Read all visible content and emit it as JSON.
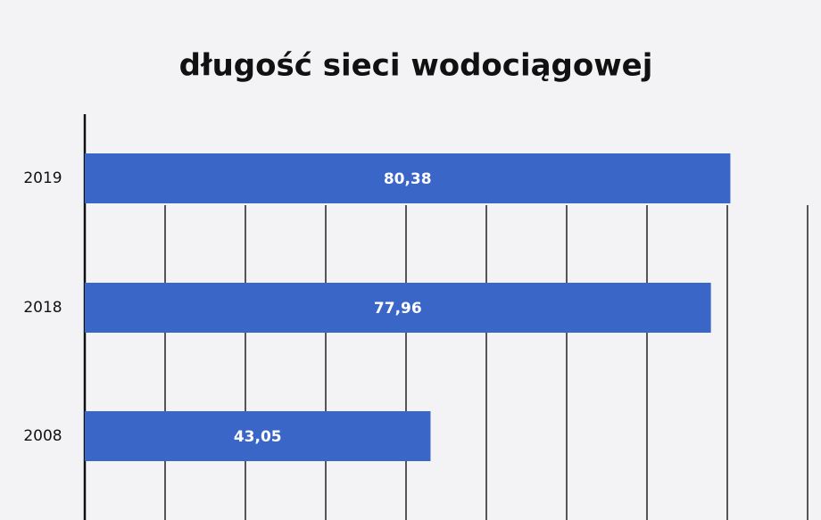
{
  "chart_data": {
    "type": "barh",
    "title": "długość sieci wodociągowej",
    "categories": [
      "2019",
      "2018",
      "2008"
    ],
    "values": [
      80.38,
      77.96,
      43.05
    ],
    "value_labels": [
      "80,38",
      "77,96",
      "43,05"
    ],
    "color": "#3a66c8",
    "xlim": [
      0,
      90
    ],
    "xticks": [
      0,
      10,
      20,
      30,
      40,
      50,
      60,
      70,
      80,
      90
    ],
    "grid": true
  }
}
